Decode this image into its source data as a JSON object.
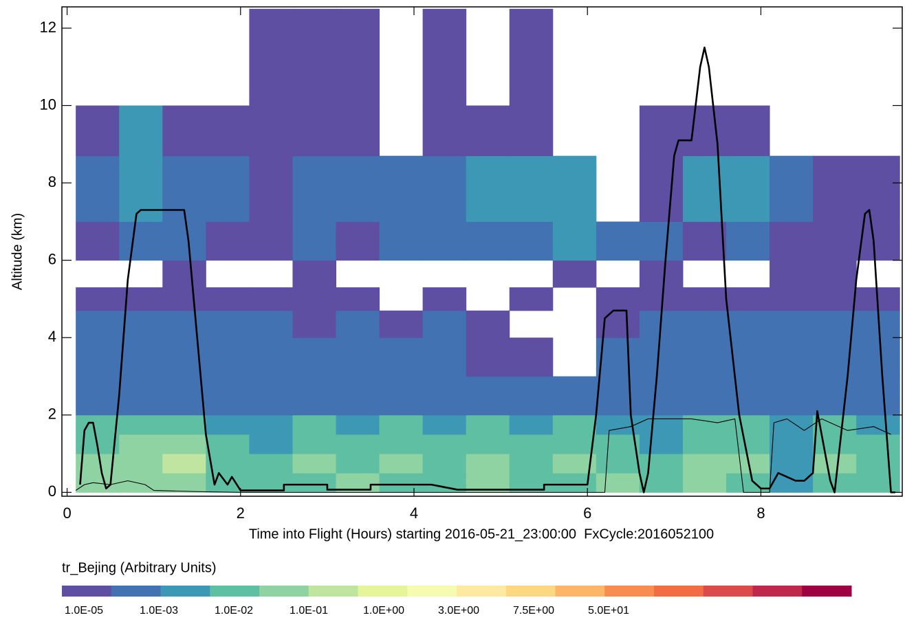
{
  "chart_data": {
    "type": "heatmap",
    "xlabel": "Time into Flight (Hours) starting 2016-05-21_23:00:00  FxCycle:2016052100",
    "ylabel": "Altitude (km)",
    "xlim": [
      -0.06,
      9.63
    ],
    "ylim": [
      -0.1,
      12.55
    ],
    "xticks": [
      0,
      2,
      4,
      6,
      8
    ],
    "yticks": [
      0,
      2,
      4,
      6,
      8,
      10,
      12
    ],
    "field": {
      "x": [
        0.1,
        0.6,
        1.1,
        1.6,
        2.1,
        2.6,
        3.1,
        3.6,
        4.1,
        4.6,
        5.1,
        5.6,
        6.1,
        6.6,
        7.1,
        7.6,
        8.1,
        8.6,
        9.1,
        9.6
      ],
      "y": [
        0,
        0.5,
        1,
        1.5,
        2,
        3,
        4,
        4.7,
        5.3,
        6,
        7,
        8.7,
        10,
        12.5
      ],
      "values": [
        [
          0.01,
          0.01,
          0.01,
          0.005,
          0.005,
          0.005,
          0.01,
          0.005,
          0.005,
          0.01,
          0.005,
          0.005,
          0.01,
          0.005,
          0.01,
          0.005,
          0.001,
          0.005,
          0.005
        ],
        [
          0.01,
          0.01,
          0.05,
          0.005,
          0.005,
          0.01,
          0.005,
          0.01,
          0.005,
          0.01,
          0.005,
          0.01,
          0.005,
          0.005,
          0.01,
          0.01,
          0.001,
          0.01,
          0.005
        ],
        [
          0.005,
          0.01,
          0.01,
          0.005,
          0.001,
          0.005,
          0.005,
          0.005,
          0.005,
          0.005,
          0.005,
          0.005,
          0.005,
          0.001,
          0.005,
          0.005,
          0.001,
          0.005,
          0.005
        ],
        [
          0.005,
          0.005,
          0.005,
          0.001,
          0.001,
          0.005,
          0.001,
          0.005,
          0.001,
          0.005,
          0.001,
          0.005,
          0.001,
          0.001,
          0.005,
          0.005,
          0.001,
          0.005,
          0.001
        ],
        [
          0.0001,
          0.0001,
          0.0001,
          0.0001,
          0.0001,
          0.0001,
          0.0001,
          0.0001,
          0.0001,
          0.0001,
          0.0001,
          0.0001,
          0.0001,
          0.0001,
          0.0001,
          0.0001,
          0.0001,
          0.0001,
          0.0001
        ],
        [
          0.0001,
          0.0001,
          0.0001,
          0.0001,
          0.0001,
          0.0001,
          0.0001,
          0.0001,
          0.0001,
          1e-05,
          1e-05,
          null,
          0.0001,
          0.0001,
          0.0001,
          0.0001,
          0.0001,
          0.0001,
          0.0001
        ],
        [
          0.0001,
          0.0001,
          0.0001,
          0.0001,
          0.0001,
          1e-05,
          0.0001,
          1e-05,
          0.0001,
          1e-05,
          null,
          null,
          1e-05,
          0.0001,
          0.0001,
          0.0001,
          0.0001,
          0.0001,
          0.0001
        ],
        [
          1e-05,
          1e-05,
          1e-05,
          1e-05,
          1e-05,
          1e-05,
          1e-05,
          null,
          1e-05,
          null,
          1e-05,
          null,
          1e-05,
          1e-05,
          1e-05,
          1e-05,
          1e-05,
          1e-05,
          1e-05
        ],
        [
          null,
          null,
          1e-05,
          null,
          null,
          1e-05,
          null,
          null,
          null,
          null,
          null,
          1e-05,
          null,
          1e-05,
          null,
          null,
          1e-05,
          1e-05,
          null
        ],
        [
          1e-05,
          0.0001,
          0.0001,
          1e-05,
          1e-05,
          0.0001,
          1e-05,
          0.0001,
          0.0001,
          0.0001,
          0.0001,
          0.001,
          0.0001,
          0.0001,
          1e-05,
          0.0001,
          1e-05,
          1e-05,
          1e-05
        ],
        [
          0.0001,
          0.001,
          0.0001,
          0.0001,
          1e-05,
          0.0001,
          0.0001,
          0.0001,
          0.0001,
          0.001,
          0.001,
          0.001,
          null,
          1e-05,
          0.001,
          0.001,
          0.0001,
          1e-05,
          1e-05
        ],
        [
          1e-05,
          0.001,
          1e-05,
          1e-05,
          1e-05,
          1e-05,
          1e-05,
          null,
          1e-05,
          1e-05,
          1e-05,
          null,
          null,
          1e-05,
          1e-05,
          1e-05,
          null,
          null,
          null
        ],
        [
          null,
          null,
          null,
          null,
          1e-05,
          1e-05,
          1e-05,
          null,
          1e-05,
          null,
          1e-05,
          null,
          null,
          null,
          null,
          null,
          null,
          null,
          null
        ]
      ]
    },
    "series": [
      {
        "color": "#000000",
        "x": [
          0.15,
          0.2,
          0.25,
          0.3,
          0.35,
          0.4,
          0.45,
          0.5,
          0.6,
          0.7,
          0.8,
          0.85,
          1.35,
          1.4,
          1.5,
          1.6,
          1.7,
          1.75,
          1.85,
          1.9,
          2.0,
          2.5,
          2.5,
          3.0,
          3.0,
          3.5,
          3.5,
          4.2,
          4.5,
          5.5,
          5.5,
          6.0,
          6.1,
          6.2,
          6.3,
          6.45,
          6.5,
          6.6,
          6.65,
          6.7,
          6.8,
          6.9,
          7.0,
          7.05,
          7.2,
          7.3,
          7.35,
          7.4,
          7.5,
          7.6,
          7.75,
          7.9,
          8.0,
          8.1,
          8.2,
          8.4,
          8.5,
          8.6,
          8.65,
          8.8,
          8.85,
          9.0,
          9.1,
          9.2,
          9.25,
          9.3,
          9.4,
          9.5,
          9.55
        ],
        "values": [
          0.2,
          1.6,
          1.8,
          1.8,
          1.2,
          0.5,
          0.1,
          0.2,
          2.5,
          5.5,
          7.2,
          7.3,
          7.3,
          6.5,
          4,
          1.5,
          0.2,
          0.5,
          0.2,
          0.4,
          0.05,
          0.05,
          0.2,
          0.2,
          0.07,
          0.07,
          0.2,
          0.2,
          0.07,
          0.07,
          0.2,
          0.2,
          2,
          4.5,
          4.7,
          4.7,
          2,
          0.5,
          0,
          0.5,
          3,
          6,
          8.7,
          9.1,
          9.1,
          11,
          11.5,
          11,
          9,
          5,
          2,
          0.3,
          0.1,
          0.1,
          0.5,
          0.3,
          0.3,
          0.5,
          2.1,
          0.3,
          0,
          3,
          5.5,
          7.2,
          7.3,
          6.5,
          3,
          0,
          0
        ]
      },
      {
        "color": "#000000",
        "x": [
          0.1,
          0.2,
          0.3,
          0.5,
          0.7,
          0.9,
          1.0,
          1.5,
          2.0,
          6.2,
          6.25,
          6.5,
          6.7,
          7.2,
          7.5,
          7.7,
          7.8,
          8.1,
          8.15,
          8.3,
          8.5,
          8.7,
          9.0,
          9.3,
          9.5
        ],
        "values": [
          0.05,
          0.2,
          0.25,
          0.2,
          0.3,
          0.2,
          0.05,
          0.02,
          0,
          0,
          1.6,
          1.7,
          1.9,
          1.9,
          1.8,
          1.9,
          0,
          0,
          1.8,
          1.9,
          1.6,
          1.9,
          1.6,
          1.7,
          1.5
        ]
      }
    ],
    "colorbar": {
      "title": "tr_Bejing (Arbitrary Units)",
      "colors": [
        "#5e4fa2",
        "#4272b2",
        "#3d98b5",
        "#5fbfa2",
        "#8fd3a3",
        "#bfe5a0",
        "#e6f598",
        "#f5fbb0",
        "#fee9a1",
        "#fed880",
        "#fdb567",
        "#f88d52",
        "#f26c44",
        "#dc4a4c",
        "#c0284b",
        "#9e0142"
      ],
      "ticks": [
        {
          "value": 1e-05,
          "label": "1.0E-05"
        },
        {
          "value": 0.001,
          "label": "1.0E-03"
        },
        {
          "value": 0.01,
          "label": "1.0E-02"
        },
        {
          "value": 0.1,
          "label": "1.0E-01"
        },
        {
          "value": 1,
          "label": "1.0E+00"
        },
        {
          "value": 3,
          "label": "3.0E+00"
        },
        {
          "value": 7.5,
          "label": "7.5E+00"
        },
        {
          "value": 50,
          "label": "5.0E+01"
        }
      ]
    }
  }
}
